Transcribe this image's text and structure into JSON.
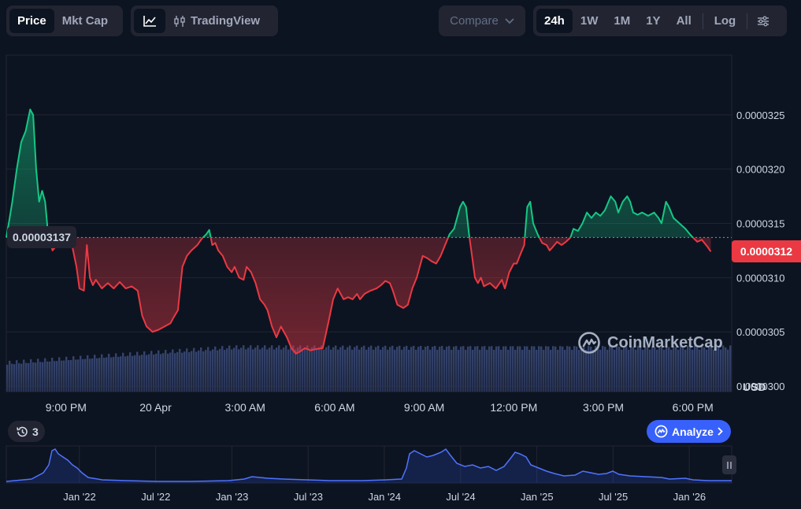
{
  "toolbar": {
    "price_label": "Price",
    "mktcap_label": "Mkt Cap",
    "tradingview_label": "TradingView",
    "compare_label": "Compare",
    "ranges": [
      "24h",
      "1W",
      "1M",
      "1Y",
      "All"
    ],
    "active_range": "24h",
    "log_label": "Log",
    "icons": {
      "line_chart": "line-chart-icon",
      "candles": "candlestick-icon",
      "compare_chevron": "chevron-down-icon",
      "settings": "sliders-icon"
    }
  },
  "chart_data": {
    "type": "area",
    "reference_price": 3.137e-05,
    "reference_label": "0.00003137",
    "current_price_label": "0.0000312",
    "y_ticks": [
      "0.0000325",
      "0.0000320",
      "0.0000315",
      "0.0000310",
      "0.0000305",
      "0.0000300"
    ],
    "y_tick_values": [
      3.25e-05,
      3.2e-05,
      3.15e-05,
      3.1e-05,
      3.05e-05,
      3e-05
    ],
    "y_unit": "USD",
    "x_ticks": [
      "9:00 PM",
      "20 Apr",
      "3:00 AM",
      "6:00 AM",
      "9:00 AM",
      "12:00 PM",
      "3:00 PM",
      "6:00 PM"
    ],
    "x_tick_hours": [
      3,
      6,
      9,
      12,
      15,
      18,
      21,
      24
    ],
    "x_start_hour": 1,
    "x_end_hour": 25.3,
    "y_range": [
      2.995e-05,
      3.305e-05
    ],
    "price_series": [
      [
        1.0,
        3.137
      ],
      [
        1.1,
        3.153
      ],
      [
        1.2,
        3.17
      ],
      [
        1.35,
        3.2
      ],
      [
        1.5,
        3.225
      ],
      [
        1.65,
        3.235
      ],
      [
        1.8,
        3.255
      ],
      [
        1.9,
        3.25
      ],
      [
        2.0,
        3.2
      ],
      [
        2.1,
        3.17
      ],
      [
        2.2,
        3.18
      ],
      [
        2.3,
        3.17
      ],
      [
        2.4,
        3.14
      ],
      [
        2.55,
        3.125
      ],
      [
        2.7,
        3.13
      ],
      [
        2.8,
        3.13
      ],
      [
        2.9,
        3.134
      ],
      [
        3.0,
        3.14
      ],
      [
        3.1,
        3.138
      ],
      [
        3.2,
        3.13
      ],
      [
        3.35,
        3.11
      ],
      [
        3.45,
        3.09
      ],
      [
        3.6,
        3.088
      ],
      [
        3.7,
        3.13
      ],
      [
        3.8,
        3.1
      ],
      [
        3.9,
        3.093
      ],
      [
        4.0,
        3.098
      ],
      [
        4.2,
        3.09
      ],
      [
        4.4,
        3.095
      ],
      [
        4.6,
        3.09
      ],
      [
        4.8,
        3.096
      ],
      [
        5.0,
        3.09
      ],
      [
        5.2,
        3.092
      ],
      [
        5.4,
        3.088
      ],
      [
        5.55,
        3.065
      ],
      [
        5.7,
        3.055
      ],
      [
        5.9,
        3.05
      ],
      [
        6.1,
        3.052
      ],
      [
        6.3,
        3.055
      ],
      [
        6.5,
        3.058
      ],
      [
        6.6,
        3.063
      ],
      [
        6.75,
        3.07
      ],
      [
        6.9,
        3.11
      ],
      [
        7.05,
        3.12
      ],
      [
        7.2,
        3.125
      ],
      [
        7.4,
        3.13
      ],
      [
        7.55,
        3.136
      ],
      [
        7.7,
        3.14
      ],
      [
        7.8,
        3.144
      ],
      [
        7.9,
        3.13
      ],
      [
        8.0,
        3.132
      ],
      [
        8.1,
        3.125
      ],
      [
        8.25,
        3.12
      ],
      [
        8.4,
        3.11
      ],
      [
        8.55,
        3.105
      ],
      [
        8.65,
        3.11
      ],
      [
        8.8,
        3.1
      ],
      [
        8.95,
        3.098
      ],
      [
        9.05,
        3.11
      ],
      [
        9.2,
        3.105
      ],
      [
        9.35,
        3.095
      ],
      [
        9.5,
        3.08
      ],
      [
        9.65,
        3.075
      ],
      [
        9.75,
        3.07
      ],
      [
        9.9,
        3.055
      ],
      [
        10.05,
        3.045
      ],
      [
        10.2,
        3.055
      ],
      [
        10.3,
        3.05
      ],
      [
        10.4,
        3.045
      ],
      [
        10.55,
        3.035
      ],
      [
        10.7,
        3.03
      ],
      [
        10.85,
        3.032
      ],
      [
        11.0,
        3.035
      ],
      [
        11.2,
        3.033
      ],
      [
        11.35,
        3.034
      ],
      [
        11.6,
        3.035
      ],
      [
        11.8,
        3.06
      ],
      [
        11.95,
        3.08
      ],
      [
        12.1,
        3.09
      ],
      [
        12.2,
        3.085
      ],
      [
        12.3,
        3.08
      ],
      [
        12.45,
        3.082
      ],
      [
        12.6,
        3.08
      ],
      [
        12.75,
        3.085
      ],
      [
        12.85,
        3.08
      ],
      [
        13.0,
        3.085
      ],
      [
        13.2,
        3.088
      ],
      [
        13.4,
        3.09
      ],
      [
        13.55,
        3.093
      ],
      [
        13.7,
        3.097
      ],
      [
        13.85,
        3.095
      ],
      [
        13.95,
        3.088
      ],
      [
        14.1,
        3.075
      ],
      [
        14.3,
        3.072
      ],
      [
        14.45,
        3.075
      ],
      [
        14.6,
        3.09
      ],
      [
        14.75,
        3.1
      ],
      [
        14.85,
        3.11
      ],
      [
        14.95,
        3.12
      ],
      [
        15.1,
        3.118
      ],
      [
        15.25,
        3.115
      ],
      [
        15.4,
        3.113
      ],
      [
        15.55,
        3.12
      ],
      [
        15.7,
        3.13
      ],
      [
        15.85,
        3.14
      ],
      [
        16.0,
        3.145
      ],
      [
        16.1,
        3.155
      ],
      [
        16.2,
        3.165
      ],
      [
        16.3,
        3.17
      ],
      [
        16.4,
        3.165
      ],
      [
        16.5,
        3.14
      ],
      [
        16.6,
        3.12
      ],
      [
        16.7,
        3.1
      ],
      [
        16.8,
        3.095
      ],
      [
        16.9,
        3.1
      ],
      [
        17.0,
        3.092
      ],
      [
        17.2,
        3.095
      ],
      [
        17.4,
        3.09
      ],
      [
        17.6,
        3.098
      ],
      [
        17.7,
        3.09
      ],
      [
        17.85,
        3.105
      ],
      [
        18.0,
        3.113
      ],
      [
        18.1,
        3.113
      ],
      [
        18.2,
        3.12
      ],
      [
        18.35,
        3.13
      ],
      [
        18.45,
        3.165
      ],
      [
        18.55,
        3.17
      ],
      [
        18.65,
        3.15
      ],
      [
        18.8,
        3.14
      ],
      [
        18.95,
        3.132
      ],
      [
        19.1,
        3.13
      ],
      [
        19.2,
        3.125
      ],
      [
        19.3,
        3.128
      ],
      [
        19.45,
        3.133
      ],
      [
        19.6,
        3.13
      ],
      [
        19.75,
        3.133
      ],
      [
        19.9,
        3.137
      ],
      [
        20.0,
        3.145
      ],
      [
        20.15,
        3.143
      ],
      [
        20.3,
        3.15
      ],
      [
        20.45,
        3.16
      ],
      [
        20.6,
        3.155
      ],
      [
        20.75,
        3.16
      ],
      [
        20.9,
        3.157
      ],
      [
        21.05,
        3.162
      ],
      [
        21.25,
        3.175
      ],
      [
        21.4,
        3.17
      ],
      [
        21.5,
        3.16
      ],
      [
        21.65,
        3.17
      ],
      [
        21.8,
        3.175
      ],
      [
        21.9,
        3.17
      ],
      [
        22.0,
        3.16
      ],
      [
        22.15,
        3.158
      ],
      [
        22.3,
        3.16
      ],
      [
        22.5,
        3.157
      ],
      [
        22.7,
        3.16
      ],
      [
        22.85,
        3.155
      ],
      [
        22.95,
        3.15
      ],
      [
        23.1,
        3.17
      ],
      [
        23.2,
        3.165
      ],
      [
        23.35,
        3.155
      ],
      [
        23.55,
        3.15
      ],
      [
        23.75,
        3.145
      ],
      [
        23.9,
        3.14
      ],
      [
        24.0,
        3.137
      ],
      [
        24.15,
        3.133
      ],
      [
        24.3,
        3.135
      ],
      [
        24.5,
        3.128
      ],
      [
        24.6,
        3.124
      ]
    ],
    "price_scale": 1e-05,
    "overview_x_ticks": [
      "Jan '22",
      "Jul '22",
      "Jan '23",
      "Jul '23",
      "Jan '24",
      "Jul '24",
      "Jan '25",
      "Jul '25",
      "Jan '26"
    ]
  },
  "watermark": "CoinMarketCap",
  "history_count": "3",
  "analyze_label": "Analyze",
  "colors": {
    "background": "#0d1421",
    "up": "#16c784",
    "down": "#ea3943",
    "accent": "#3861fb",
    "grid": "#222531"
  }
}
